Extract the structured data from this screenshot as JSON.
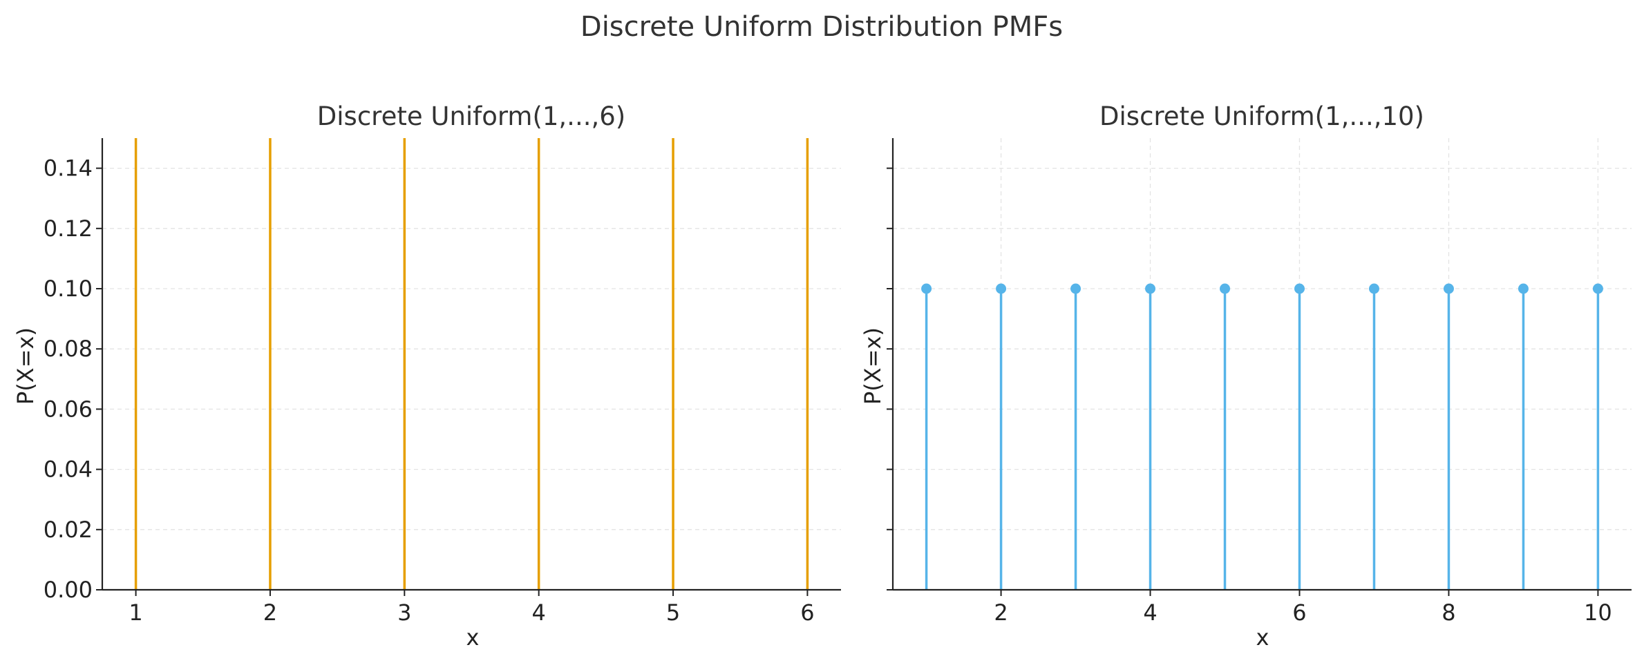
{
  "figure": {
    "title": "Discrete Uniform Distribution PMFs"
  },
  "chart_data": [
    {
      "type": "stem",
      "title": "Discrete Uniform(1,...,6)",
      "xlabel": "x",
      "ylabel": "P(X=x)",
      "color": "#E69F00",
      "markers": false,
      "x": [
        1,
        2,
        3,
        4,
        5,
        6
      ],
      "y": [
        0.1667,
        0.1667,
        0.1667,
        0.1667,
        0.1667,
        0.1667
      ],
      "xlim": [
        0.75,
        6.25
      ],
      "ylim": [
        0,
        0.15
      ],
      "xticks": [
        1,
        2,
        3,
        4,
        5,
        6
      ],
      "xtick_labels": [
        "1",
        "2",
        "3",
        "4",
        "5",
        "6"
      ],
      "yticks": [
        0,
        0.02,
        0.04,
        0.06,
        0.08,
        0.1,
        0.12,
        0.14
      ],
      "ytick_labels": [
        "0.00",
        "0.02",
        "0.04",
        "0.06",
        "0.08",
        "0.10",
        "0.12",
        "0.14"
      ],
      "grid": true,
      "grid_axis": "y"
    },
    {
      "type": "stem",
      "title": "Discrete Uniform(1,...,10)",
      "xlabel": "x",
      "ylabel": "P(X=x)",
      "color": "#56B4E9",
      "markers": true,
      "x": [
        1,
        2,
        3,
        4,
        5,
        6,
        7,
        8,
        9,
        10
      ],
      "y": [
        0.1,
        0.1,
        0.1,
        0.1,
        0.1,
        0.1,
        0.1,
        0.1,
        0.1,
        0.1
      ],
      "xlim": [
        0.55,
        10.45
      ],
      "ylim": [
        0,
        0.15
      ],
      "xticks": [
        2,
        4,
        6,
        8,
        10
      ],
      "xtick_labels": [
        "2",
        "4",
        "6",
        "8",
        "10"
      ],
      "yticks": [
        0,
        0.02,
        0.04,
        0.06,
        0.08,
        0.1,
        0.12,
        0.14
      ],
      "ytick_labels": [],
      "grid": true,
      "grid_axis": "both"
    }
  ]
}
